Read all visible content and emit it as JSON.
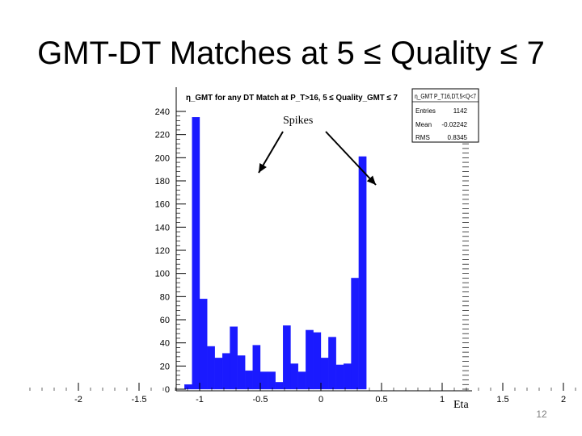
{
  "slide": {
    "title": "GMT-DT Matches at 5 ≤ Quality ≤ 7",
    "page_number": "12"
  },
  "annotations": {
    "spikes": "Spikes",
    "eta": "Eta"
  },
  "colors": {
    "bar_fill": "#1a1aff",
    "arrow": "#000000",
    "axis": "#000000"
  },
  "chart_data": {
    "type": "bar",
    "title": "η_GMT for any DT Match at P_T>16, 5 ≤ Quality_GMT ≤ 7",
    "xlabel": "Eta",
    "ylabel": "",
    "xlim": [
      -2.4,
      2.4
    ],
    "ylim": [
      0,
      240
    ],
    "x_ticks": [
      -2,
      -1.5,
      -1,
      -0.5,
      0,
      0.5,
      1,
      1.5,
      2
    ],
    "x_tick_labels": [
      "-2",
      "-1.5",
      "-1",
      "-0.5",
      "0",
      "0.5",
      "1",
      "1.5",
      "2"
    ],
    "y_ticks": [
      0,
      20,
      40,
      60,
      80,
      100,
      120,
      140,
      160,
      180,
      200,
      220,
      240
    ],
    "bin_width": 0.0625,
    "bins": [
      {
        "x0": -1.125,
        "value": 4
      },
      {
        "x0": -1.0625,
        "value": 235
      },
      {
        "x0": -1.0,
        "value": 78
      },
      {
        "x0": -0.9375,
        "value": 37
      },
      {
        "x0": -0.875,
        "value": 27
      },
      {
        "x0": -0.8125,
        "value": 31
      },
      {
        "x0": -0.75,
        "value": 54
      },
      {
        "x0": -0.6875,
        "value": 29
      },
      {
        "x0": -0.625,
        "value": 16
      },
      {
        "x0": -0.5625,
        "value": 38
      },
      {
        "x0": -0.5,
        "value": 15
      },
      {
        "x0": -0.4375,
        "value": 15
      },
      {
        "x0": -0.375,
        "value": 6
      },
      {
        "x0": -0.3125,
        "value": 55
      },
      {
        "x0": -0.25,
        "value": 22
      },
      {
        "x0": -0.1875,
        "value": 15
      },
      {
        "x0": -0.125,
        "value": 51
      },
      {
        "x0": -0.0625,
        "value": 49
      },
      {
        "x0": 0.0,
        "value": 27
      },
      {
        "x0": 0.0625,
        "value": 45
      },
      {
        "x0": 0.125,
        "value": 21
      },
      {
        "x0": 0.1875,
        "value": 22
      },
      {
        "x0": 0.25,
        "value": 96
      },
      {
        "x0": 0.3125,
        "value": 201
      }
    ],
    "stats_box": {
      "name": "η_GMT P_T16,DT,5<Q<7",
      "entries_label": "Entries",
      "entries": "1142",
      "mean_label": "Mean",
      "mean": "-0.02242",
      "rms_label": "RMS",
      "rms": "0.8345"
    },
    "legend_position": "top-right",
    "grid": false
  }
}
